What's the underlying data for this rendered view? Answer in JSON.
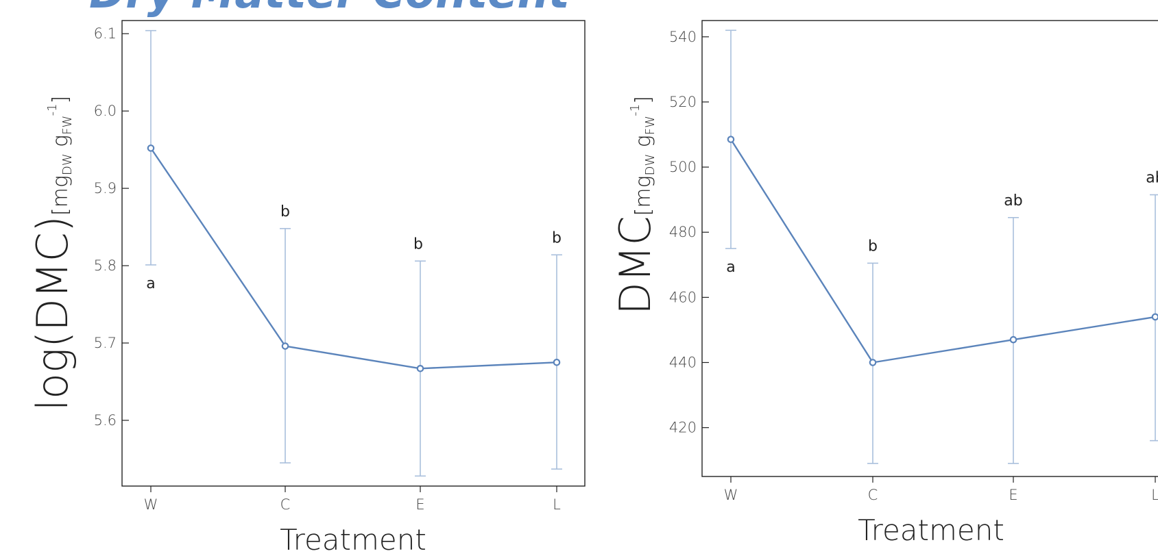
{
  "page": {
    "title": "Dry Matter Content"
  },
  "chart_data": [
    {
      "type": "line",
      "categories": [
        "W",
        "C",
        "E",
        "L"
      ],
      "values": [
        5.952,
        5.696,
        5.667,
        5.675
      ],
      "error_low": [
        5.801,
        5.545,
        5.528,
        5.537
      ],
      "error_high": [
        6.104,
        5.848,
        5.806,
        5.814
      ],
      "significance": [
        "a",
        "b",
        "b",
        "b"
      ],
      "yticks": [
        5.6,
        5.7,
        5.8,
        5.9,
        6.0,
        6.1
      ],
      "ytick_labels": [
        "5.6",
        "5.7",
        "5.8",
        "5.9",
        "6.0",
        "6.1"
      ],
      "ylim": [
        5.515,
        6.117
      ],
      "xlabel": "Treatment",
      "ylabel": {
        "main": "log(DMC)",
        "open": "[",
        "unit1": "mg",
        "sub1": "DW",
        "space": " ",
        "unit2": "g",
        "sub2": "FW",
        "sup": "-1",
        "close": "]"
      },
      "series_color": "#5b84bb",
      "errorbar_color": "#a9bfdc"
    },
    {
      "type": "line",
      "categories": [
        "W",
        "C",
        "E",
        "L"
      ],
      "values": [
        508.5,
        440,
        447,
        454
      ],
      "error_low": [
        475,
        409,
        409,
        416
      ],
      "error_high": [
        542,
        470.5,
        484.5,
        491.5
      ],
      "significance": [
        "a",
        "b",
        "ab",
        "ab"
      ],
      "yticks": [
        420,
        440,
        460,
        480,
        500,
        520,
        540
      ],
      "ytick_labels": [
        "420",
        "440",
        "460",
        "480",
        "500",
        "520",
        "540"
      ],
      "ylim": [
        405,
        545
      ],
      "xlabel": "Treatment",
      "ylabel": {
        "main": "DMC",
        "open": "[",
        "unit1": "mg",
        "sub1": "DW",
        "space": " ",
        "unit2": "g",
        "sub2": "FW",
        "sup": "-1",
        "close": "]"
      },
      "series_color": "#5b84bb",
      "errorbar_color": "#a9bfdc"
    }
  ]
}
